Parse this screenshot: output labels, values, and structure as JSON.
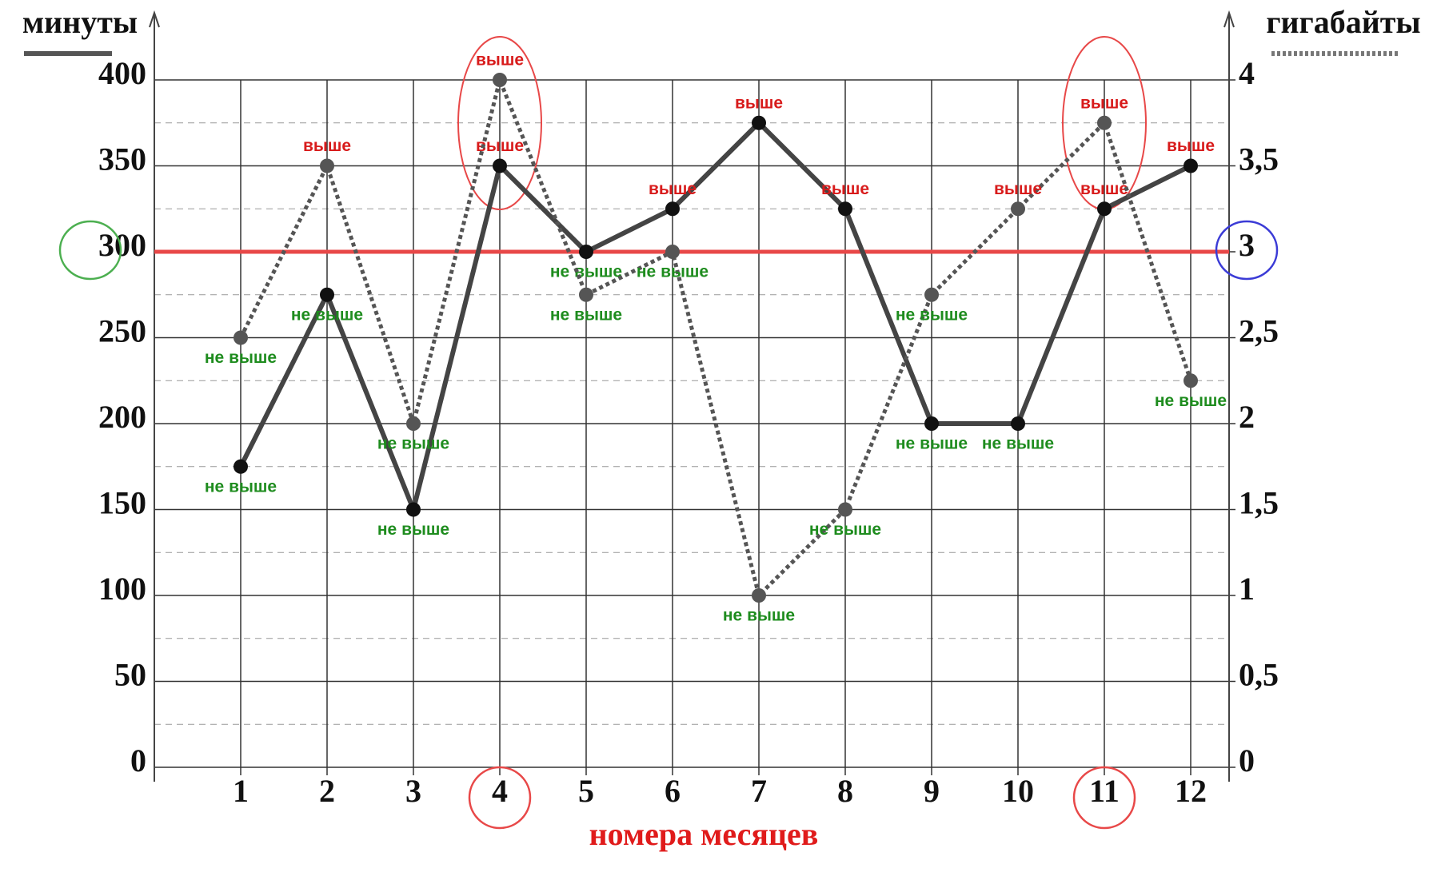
{
  "chart_data": {
    "type": "line",
    "y_label": "минуты",
    "y2_label": "гигабайты",
    "x_label": "номера месяцев",
    "categories": [
      "1",
      "2",
      "3",
      "4",
      "5",
      "6",
      "7",
      "8",
      "9",
      "10",
      "11",
      "12"
    ],
    "ylim": [
      0,
      400
    ],
    "yticks": [
      0,
      50,
      100,
      150,
      200,
      250,
      300,
      350,
      400
    ],
    "minor_grid": [
      25,
      75,
      125,
      175,
      225,
      275,
      325,
      375
    ],
    "y2lim": [
      0,
      4
    ],
    "y2ticks": [
      0,
      {
        "value": 0.5,
        "label": "0,5"
      },
      1,
      {
        "value": 1.5,
        "label": "1,5"
      },
      2,
      {
        "value": 2.5,
        "label": "2,5"
      },
      3,
      {
        "value": 3.5,
        "label": "3,5"
      },
      4
    ],
    "grid": true,
    "reference_line": {
      "value": 300,
      "color": "#e84848"
    },
    "highlights": {
      "ytick": 300,
      "ytick_color": "#4caf50",
      "y2tick": 3,
      "y2tick_color": "#3b3bd6",
      "categories": [
        "4",
        "11"
      ],
      "color": "#e84848"
    },
    "series": [
      {
        "name": "минуты",
        "color": "#444444",
        "dashed": false,
        "values": [
          175,
          275,
          150,
          350,
          300,
          325,
          375,
          325,
          200,
          200,
          325,
          350
        ],
        "point_labels": [
          "не выше",
          "не выше",
          "не выше",
          "выше",
          "не выше",
          "выше",
          "выше",
          "выше",
          "не выше",
          "не выше",
          "выше",
          "выше"
        ],
        "point_label_colors": [
          "#1e8c1e",
          "#1e8c1e",
          "#1e8c1e",
          "#d81b1b",
          "#1e8c1e",
          "#d81b1b",
          "#d81b1b",
          "#d81b1b",
          "#1e8c1e",
          "#1e8c1e",
          "#d81b1b",
          "#d81b1b"
        ]
      },
      {
        "name": "гигабайты",
        "color": "#555555",
        "dashed": true,
        "axis": "y2",
        "values": [
          2.5,
          3.5,
          2,
          4,
          2.75,
          3,
          1,
          1.5,
          2.75,
          3.25,
          3.75,
          2.25
        ],
        "point_labels": [
          "не выше",
          "выше",
          "не выше",
          "выше",
          "не выше",
          "не выше",
          "не выше",
          "не выше",
          "не выше",
          "выше",
          "выше",
          "не выше"
        ],
        "point_label_colors": [
          "#1e8c1e",
          "#d81b1b",
          "#1e8c1e",
          "#d81b1b",
          "#1e8c1e",
          "#1e8c1e",
          "#1e8c1e",
          "#1e8c1e",
          "#1e8c1e",
          "#d81b1b",
          "#d81b1b",
          "#1e8c1e"
        ]
      }
    ]
  }
}
